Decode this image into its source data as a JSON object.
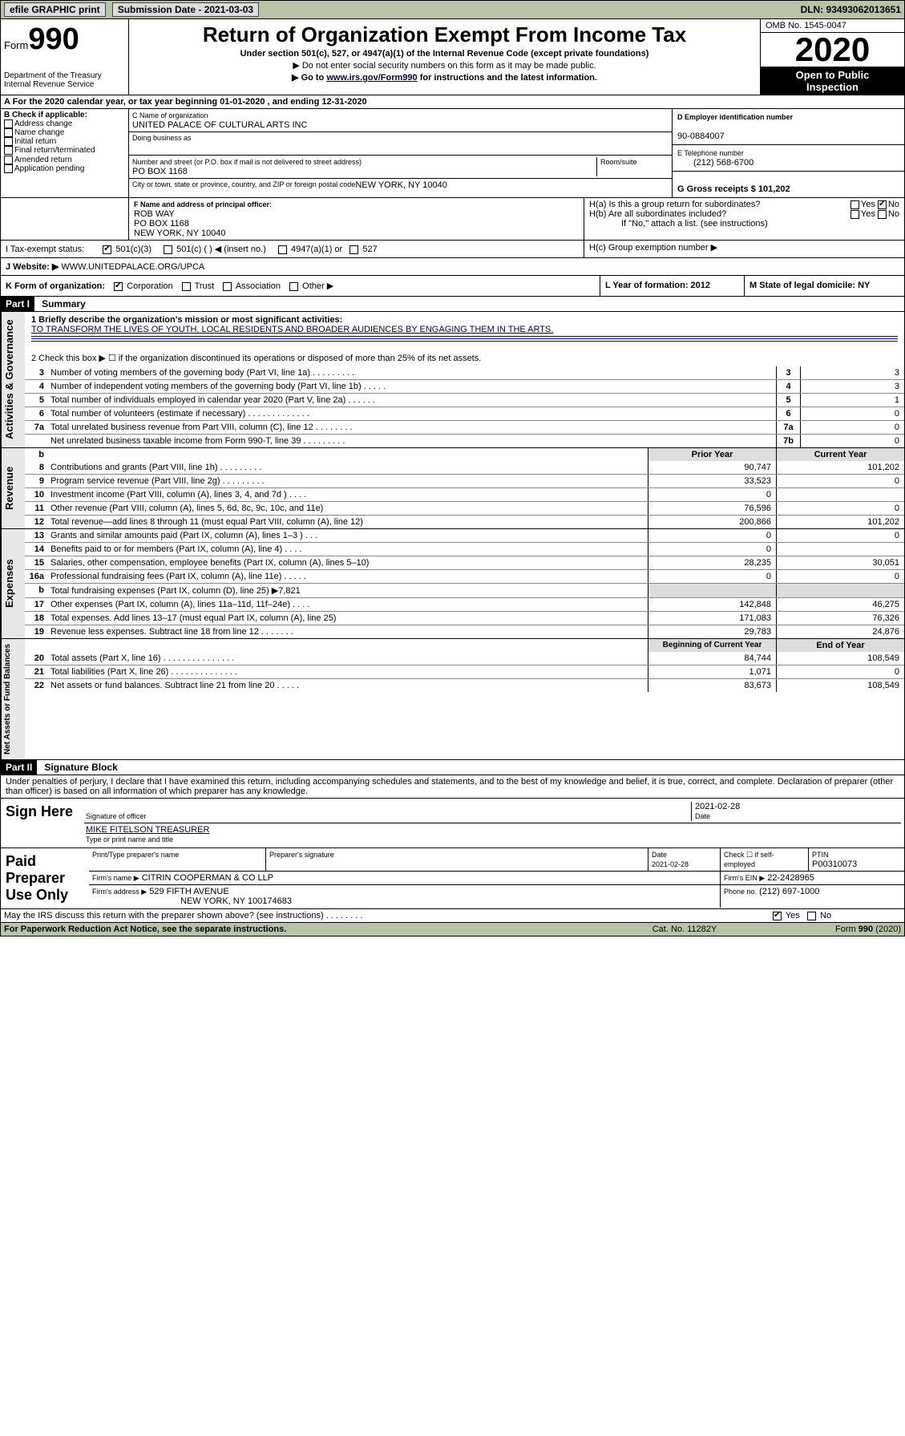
{
  "topbar": {
    "efile": "efile GRAPHIC print",
    "subdate_lbl": "Submission Date - 2021-03-03",
    "dln": "DLN: 93493062013651"
  },
  "header": {
    "form": "Form",
    "num": "990",
    "dept": "Department of the Treasury\nInternal Revenue Service",
    "title": "Return of Organization Exempt From Income Tax",
    "sub": "Under section 501(c), 527, or 4947(a)(1) of the Internal Revenue Code (except private foundations)",
    "instr1": "▶ Do not enter social security numbers on this form as it may be made public.",
    "instr2_a": "▶ Go to ",
    "instr2_link": "www.irs.gov/Form990",
    "instr2_b": " for instructions and the latest information.",
    "omb": "OMB No. 1545-0047",
    "year": "2020",
    "open1": "Open to Public",
    "open2": "Inspection"
  },
  "secA": "A   For the 2020 calendar year, or tax year beginning 01-01-2020    , and ending 12-31-2020",
  "boxB": {
    "hdr": "B Check if applicable:",
    "opts": [
      "Address change",
      "Name change",
      "Initial return",
      "Final return/terminated",
      "Amended return",
      "Application pending"
    ]
  },
  "boxC": {
    "lbl": "C Name of organization",
    "name": "UNITED PALACE OF CULTURAL ARTS INC",
    "dba_lbl": "Doing business as",
    "addr_lbl": "Number and street (or P.O. box if mail is not delivered to street address)",
    "room_lbl": "Room/suite",
    "addr": "PO BOX 1168",
    "city_lbl": "City or town, state or province, country, and ZIP or foreign postal code",
    "city": "NEW YORK, NY  10040"
  },
  "boxD": {
    "lbl": "D Employer identification number",
    "val": "90-0884007"
  },
  "boxE": {
    "lbl": "E Telephone number",
    "val": "(212) 568-6700"
  },
  "boxG": {
    "lbl": "G Gross receipts $ 101,202"
  },
  "boxF": {
    "lbl": "F  Name and address of principal officer:",
    "name": "ROB WAY",
    "addr": "PO BOX 1168",
    "city": "NEW YORK, NY  10040"
  },
  "boxH": {
    "a": "H(a)  Is this a group return for subordinates?",
    "b": "H(b)  Are all subordinates included?",
    "b2": "If \"No,\" attach a list. (see instructions)",
    "c": "H(c)  Group exemption number ▶",
    "yes": "Yes",
    "no": "No"
  },
  "boxI": {
    "lbl": "I    Tax-exempt status:",
    "o1": "501(c)(3)",
    "o2": "501(c) (   ) ◀ (insert no.)",
    "o3": "4947(a)(1) or",
    "o4": "527"
  },
  "boxJ": {
    "lbl": "J   Website: ▶",
    "val": "  WWW.UNITEDPALACE.ORG/UPCA"
  },
  "boxK": {
    "lbl": "K Form of organization:",
    "opts": [
      "Corporation",
      "Trust",
      "Association",
      "Other ▶"
    ]
  },
  "boxL": {
    "lbl": "L Year of formation: 2012"
  },
  "boxM": {
    "lbl": "M State of legal domicile: NY"
  },
  "part1": {
    "bar": "Part I",
    "title": "Summary"
  },
  "summary": {
    "l1_lbl": "1  Briefly describe the organization's mission or most significant activities:",
    "l1_val": "TO TRANSFORM THE LIVES OF YOUTH, LOCAL RESIDENTS AND BROADER AUDIENCES BY ENGAGING THEM IN THE ARTS.",
    "l2": "2   Check this box ▶ ☐  if the organization discontinued its operations or disposed of more than 25% of its net assets.",
    "lines": [
      {
        "n": "3",
        "t": "Number of voting members of the governing body (Part VI, line 1a)   .   .   .   .   .   .   .   .   .",
        "nn": "3",
        "v": "3"
      },
      {
        "n": "4",
        "t": "Number of independent voting members of the governing body (Part VI, line 1b)   .   .   .   .   .",
        "nn": "4",
        "v": "3"
      },
      {
        "n": "5",
        "t": "Total number of individuals employed in calendar year 2020 (Part V, line 2a)   .   .   .   .   .   .",
        "nn": "5",
        "v": "1"
      },
      {
        "n": "6",
        "t": "Total number of volunteers (estimate if necessary)   .   .   .   .   .   .   .   .   .   .   .   .   .",
        "nn": "6",
        "v": "0"
      },
      {
        "n": "7a",
        "t": "Total unrelated business revenue from Part VIII, column (C), line 12   .   .   .   .   .   .   .   .",
        "nn": "7a",
        "v": "0"
      },
      {
        "n": "",
        "t": "Net unrelated business taxable income from Form 990-T, line 39   .   .   .   .   .   .   .   .   .",
        "nn": "7b",
        "v": "0"
      }
    ],
    "rev_hdr_b": "b",
    "rev_hdr1": "Prior Year",
    "rev_hdr2": "Current Year",
    "rev": [
      {
        "n": "8",
        "t": "Contributions and grants (Part VIII, line 1h)   .   .   .   .   .   .   .   .   .",
        "c1": "90,747",
        "c2": "101,202"
      },
      {
        "n": "9",
        "t": "Program service revenue (Part VIII, line 2g)   .   .   .   .   .   .   .   .   .",
        "c1": "33,523",
        "c2": "0"
      },
      {
        "n": "10",
        "t": "Investment income (Part VIII, column (A), lines 3, 4, and 7d )   .   .   .   .",
        "c1": "0",
        "c2": ""
      },
      {
        "n": "11",
        "t": "Other revenue (Part VIII, column (A), lines 5, 6d, 8c, 9c, 10c, and 11e)",
        "c1": "76,596",
        "c2": "0"
      },
      {
        "n": "12",
        "t": "Total revenue—add lines 8 through 11 (must equal Part VIII, column (A), line 12)",
        "c1": "200,866",
        "c2": "101,202"
      }
    ],
    "exp": [
      {
        "n": "13",
        "t": "Grants and similar amounts paid (Part IX, column (A), lines 1–3 )   .   .   .",
        "c1": "0",
        "c2": "0"
      },
      {
        "n": "14",
        "t": "Benefits paid to or for members (Part IX, column (A), line 4)   .   .   .   .",
        "c1": "0",
        "c2": ""
      },
      {
        "n": "15",
        "t": "Salaries, other compensation, employee benefits (Part IX, column (A), lines 5–10)",
        "c1": "28,235",
        "c2": "30,051"
      },
      {
        "n": "16a",
        "t": "Professional fundraising fees (Part IX, column (A), line 11e)   .   .   .   .   .",
        "c1": "0",
        "c2": "0"
      },
      {
        "n": "b",
        "t": "Total fundraising expenses (Part IX, column (D), line 25) ▶7,821",
        "c1": "",
        "c2": "",
        "shade": true
      },
      {
        "n": "17",
        "t": "Other expenses (Part IX, column (A), lines 11a–11d, 11f–24e)   .   .   .   .",
        "c1": "142,848",
        "c2": "46,275"
      },
      {
        "n": "18",
        "t": "Total expenses. Add lines 13–17 (must equal Part IX, column (A), line 25)",
        "c1": "171,083",
        "c2": "76,326"
      },
      {
        "n": "19",
        "t": "Revenue less expenses. Subtract line 18 from line 12   .   .   .   .   .   .   .",
        "c1": "29,783",
        "c2": "24,876"
      }
    ],
    "na_hdr1": "Beginning of Current Year",
    "na_hdr2": "End of Year",
    "na": [
      {
        "n": "20",
        "t": "Total assets (Part X, line 16)   .   .   .   .   .   .   .   .   .   .   .   .   .   .   .",
        "c1": "84,744",
        "c2": "108,549"
      },
      {
        "n": "21",
        "t": "Total liabilities (Part X, line 26)   .   .   .   .   .   .   .   .   .   .   .   .   .   .",
        "c1": "1,071",
        "c2": "0"
      },
      {
        "n": "22",
        "t": "Net assets or fund balances. Subtract line 21 from line 20   .   .   .   .   .",
        "c1": "83,673",
        "c2": "108,549"
      }
    ]
  },
  "part2": {
    "bar": "Part II",
    "title": "Signature Block"
  },
  "perjury": "Under penalties of perjury, I declare that I have examined this return, including accompanying schedules and statements, and to the best of my knowledge and belief, it is true, correct, and complete. Declaration of preparer (other than officer) is based on all information of which preparer has any knowledge.",
  "sign": {
    "lbl": "Sign Here",
    "date": "2021-02-28",
    "sig_lbl": "Signature of officer",
    "date_lbl": "Date",
    "name": "MIKE FITELSON  TREASURER",
    "name_lbl": "Type or print name and title"
  },
  "paid": {
    "lbl": "Paid Preparer Use Only",
    "h1": "Print/Type preparer's name",
    "h2": "Preparer's signature",
    "h3": "Date",
    "h3v": "2021-02-28",
    "h4": "Check ☐ if self-employed",
    "h5": "PTIN",
    "h5v": "P00310073",
    "firm_lbl": "Firm's name      ▶",
    "firm": "CITRIN COOPERMAN & CO LLP",
    "ein_lbl": "Firm's EIN ▶",
    "ein": "22-2428965",
    "addr_lbl": "Firm's address  ▶",
    "addr1": "529 FIFTH AVENUE",
    "addr2": "NEW YORK, NY  100174683",
    "phone_lbl": "Phone no.",
    "phone": "(212) 697-1000"
  },
  "footer": {
    "discuss": "May the IRS discuss this return with the preparer shown above? (see instructions)   .   .   .   .   .   .   .   .",
    "yes": "Yes",
    "no": "No",
    "pra": "For Paperwork Reduction Act Notice, see the separate instructions.",
    "cat": "Cat. No. 11282Y",
    "form": "Form 990 (2020)"
  },
  "vlabels": {
    "gov": "Activities & Governance",
    "rev": "Revenue",
    "exp": "Expenses",
    "na": "Net Assets or Fund Balances"
  }
}
